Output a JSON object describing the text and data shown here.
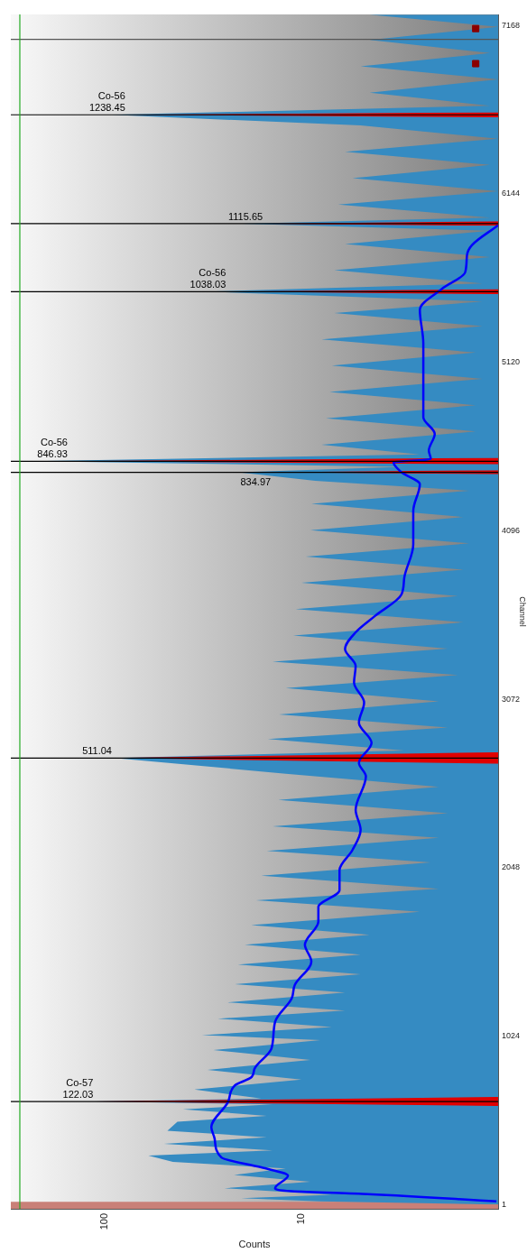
{
  "chart_data": {
    "type": "area",
    "orientation": "horizontal",
    "xlabel": "Counts",
    "ylabel": "Channel",
    "log": "x",
    "grid": false,
    "legend": false,
    "xlim": [
      300,
      1
    ],
    "xticks": [
      10,
      100
    ],
    "ylim": [
      -25,
      7235
    ],
    "yticks": [
      1,
      1024,
      2048,
      3072,
      4096,
      5120,
      6144,
      7168
    ],
    "series": [
      {
        "color": "#358bc2",
        "x": [
          1,
          20,
          40,
          60,
          100,
          140,
          180,
          220,
          260,
          298,
          330,
          370,
          410,
          450,
          504,
          540,
          580,
          610,
          627,
          645,
          700,
          760,
          820,
          880,
          940,
          1000,
          1031,
          1080,
          1131,
          1180,
          1230,
          1290,
          1340,
          1400,
          1460,
          1520,
          1580,
          1640,
          1700,
          1780,
          1850,
          1920,
          2000,
          2080,
          2150,
          2230,
          2300,
          2380,
          2460,
          2540,
          2620,
          2715,
          2760,
          2830,
          2900,
          2980,
          3060,
          3140,
          3220,
          3300,
          3380,
          3460,
          3540,
          3620,
          3700,
          3780,
          3860,
          3940,
          4020,
          4100,
          4180,
          4260,
          4340,
          4400,
          4452,
          4485,
          4519,
          4560,
          4620,
          4700,
          4780,
          4860,
          4940,
          5020,
          5100,
          5180,
          5260,
          5340,
          5420,
          5490,
          5550,
          5600,
          5680,
          5760,
          5840,
          5920,
          5963,
          6000,
          6080,
          6160,
          6240,
          6320,
          6400,
          6480,
          6560,
          6625,
          6680,
          6760,
          6840,
          6920,
          7000,
          7080,
          7160,
          7234
        ],
        "values": [
          1.0,
          8,
          20.2,
          7,
          24.6,
          9,
          22,
          12,
          45,
          60,
          14,
          50,
          15,
          48,
          42.7,
          15,
          40,
          14,
          112,
          16,
          35,
          10,
          30,
          9,
          28,
          8,
          32,
          7,
          26.6,
          6,
          23.7,
          6,
          21.8,
          5,
          21,
          5,
          19.4,
          4.5,
          18,
          2.5,
          17,
          2,
          16,
          2.2,
          15,
          2,
          14,
          1.8,
          13.1,
          2,
          12,
          90,
          3,
          14.8,
          1.8,
          13,
          2,
          12,
          1.6,
          14,
          1.8,
          11,
          1.5,
          10.7,
          1.6,
          10,
          1.5,
          9.5,
          1.4,
          9,
          1.5,
          8.9,
          1.4,
          8.5,
          21,
          3,
          232,
          2.5,
          7.9,
          1.3,
          7.5,
          1.3,
          7.2,
          1.2,
          7,
          1.3,
          7.9,
          1.2,
          6.8,
          1.2,
          29.9,
          1.2,
          6.8,
          1.1,
          6,
          1.1,
          20,
          1.1,
          6.5,
          1.0,
          5.5,
          1.1,
          6,
          1.0,
          5,
          92,
          1.1,
          4.5,
          1.0,
          5,
          1.1,
          4.5,
          1.0,
          4.5
        ]
      },
      {
        "type": "area",
        "color": "#e00000",
        "x": [
          600,
          627,
          655,
          null,
          2680,
          2715,
          2750,
          null,
          4440,
          4452,
          4465,
          null,
          4500,
          4519,
          4540,
          null,
          5535,
          5550,
          5565,
          null,
          5950,
          5963,
          5978,
          null,
          6610,
          6625,
          6640
        ],
        "values": [
          1,
          112,
          1,
          null,
          1,
          90,
          1,
          null,
          1,
          14,
          1,
          null,
          1,
          151,
          1,
          null,
          1,
          23.7,
          1,
          null,
          1,
          15.4,
          1,
          null,
          1,
          77,
          1
        ]
      },
      {
        "type": "line",
        "color": "#0000ff",
        "x": [
          20,
          64,
          82,
          100,
          176,
          227,
          287,
          400,
          471,
          624,
          725,
          776,
          827,
          949,
          1112,
          1254,
          1336,
          1478,
          1580,
          1722,
          1810,
          1912,
          2034,
          2156,
          2278,
          2400,
          2604,
          2685,
          2807,
          2929,
          3052,
          3173,
          3275,
          3377,
          3479,
          3581,
          3709,
          3810,
          4014,
          4217,
          4380,
          4452,
          4512,
          4533,
          4584,
          4685,
          4787,
          5031,
          5235,
          5439,
          5567,
          5668,
          5770,
          5832,
          5953
        ],
        "values": [
          1.02,
          4.6,
          11.2,
          13.6,
          11.7,
          16.0,
          25.5,
          27.6,
          28.7,
          23.6,
          21.8,
          17.9,
          17.3,
          14.2,
          13.6,
          11.2,
          10.8,
          8.9,
          9.6,
          8.2,
          8.2,
          6.4,
          6.4,
          5.5,
          5.0,
          5.3,
          4.7,
          5.1,
          4.4,
          5.1,
          4.8,
          5.4,
          5.3,
          6.0,
          5.3,
          4.2,
          3.1,
          3.0,
          2.7,
          2.7,
          2.5,
          3.1,
          3.4,
          2.2,
          2.25,
          2.1,
          2.4,
          2.4,
          2.4,
          2.5,
          1.93,
          1.47,
          1.44,
          1.36,
          1.0
        ]
      },
      {
        "type": "scatter",
        "color": "#8b0000",
        "marker": "square",
        "x": [
          6936,
          7149
        ],
        "values": [
          1.3,
          1.3
        ]
      }
    ],
    "ref_lines": [
      {
        "axis": "y",
        "value": 627,
        "color": "#000000"
      },
      {
        "axis": "y",
        "value": 2715,
        "color": "#000000"
      },
      {
        "axis": "y",
        "value": 4452,
        "color": "#000000"
      },
      {
        "axis": "y",
        "value": 4519,
        "color": "#000000"
      },
      {
        "axis": "y",
        "value": 5550,
        "color": "#000000"
      },
      {
        "axis": "y",
        "value": 5963,
        "color": "#000000"
      },
      {
        "axis": "y",
        "value": 6625,
        "color": "#000000"
      },
      {
        "axis": "y",
        "value": 7084,
        "color": "#555555"
      },
      {
        "axis": "x",
        "value": 270,
        "color": "#22aa22"
      }
    ],
    "bands": [
      {
        "axis": "y",
        "from": -25,
        "to": 17,
        "color": "#c98078"
      }
    ],
    "annotations": [
      {
        "text": "Co-57\n122.03",
        "x": 112,
        "y": 627
      },
      {
        "text": "511.04",
        "x": 90,
        "y": 2715
      },
      {
        "text": "834.97",
        "x": 14,
        "y": 4452
      },
      {
        "text": "Co-56\n846.93",
        "x": 151,
        "y": 4519
      },
      {
        "text": "Co-56\n1038.03",
        "x": 23.7,
        "y": 5550
      },
      {
        "text": "1115.65",
        "x": 15.4,
        "y": 5963
      },
      {
        "text": "Co-56\n1238.45",
        "x": 77,
        "y": 6625
      }
    ]
  }
}
